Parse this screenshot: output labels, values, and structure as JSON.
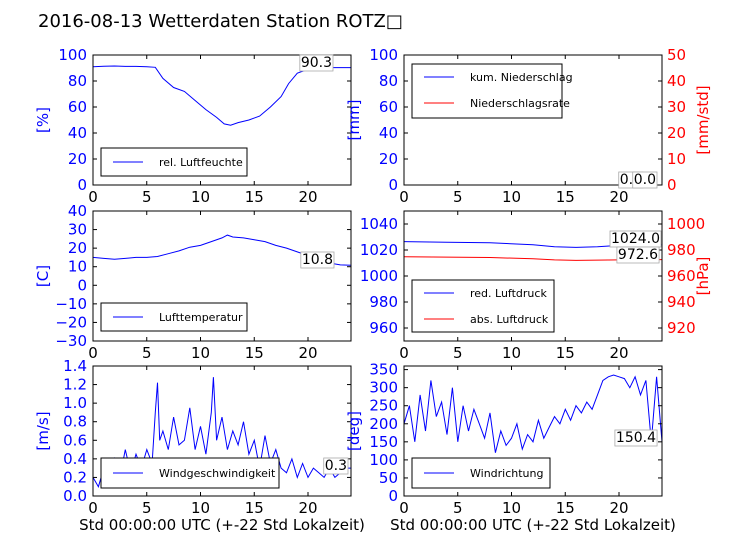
{
  "title": "2016-08-13 Wetterdaten Station ROTZ□",
  "colors": {
    "blue": "#0000ff",
    "red": "#ff0000",
    "axis": "#000000"
  },
  "chart_data": [
    {
      "id": "humidity",
      "type": "line",
      "xlim": [
        0,
        24
      ],
      "ylim": [
        0,
        100
      ],
      "xticks": [
        "0",
        "5",
        "10",
        "15",
        "20"
      ],
      "xtick_values": [
        0,
        5,
        10,
        15,
        20
      ],
      "yticks": [
        "0",
        "20",
        "40",
        "60",
        "80",
        "100"
      ],
      "ytick_values": [
        0,
        20,
        40,
        60,
        80,
        100
      ],
      "ylabel": "[%]",
      "xlabel": "",
      "annotation": "90.3",
      "legend": [
        "rel. Luftfeuchte"
      ],
      "series": [
        {
          "name": "rel. Luftfeuchte",
          "color": "#0000ff",
          "x": [
            0,
            1,
            2,
            3,
            4,
            5,
            5.8,
            6.5,
            7.5,
            8.5,
            9.5,
            10.5,
            11.5,
            12.2,
            12.8,
            13.5,
            14.5,
            15.5,
            16.5,
            17.5,
            18.2,
            19,
            20,
            21,
            22,
            23,
            24
          ],
          "y": [
            91,
            91.3,
            91.5,
            91.2,
            91.2,
            91,
            90.5,
            82,
            75,
            72,
            65,
            58,
            52,
            47,
            46,
            48,
            50,
            53,
            60,
            68,
            78,
            86,
            89,
            90,
            90.3,
            90.3,
            90.3
          ]
        }
      ]
    },
    {
      "id": "precipitation",
      "type": "line",
      "xlim": [
        0,
        24
      ],
      "ylim": [
        0,
        100
      ],
      "ylim_right": [
        0,
        50
      ],
      "xticks": [
        "0",
        "5",
        "10",
        "15",
        "20"
      ],
      "xtick_values": [
        0,
        5,
        10,
        15,
        20
      ],
      "yticks": [
        "0",
        "20",
        "40",
        "60",
        "80",
        "100"
      ],
      "ytick_values": [
        0,
        20,
        40,
        60,
        80,
        100
      ],
      "yticks_right": [
        "0",
        "10",
        "20",
        "30",
        "40",
        "50"
      ],
      "ytick_values_right": [
        0,
        10,
        20,
        30,
        40,
        50
      ],
      "ylabel": "[mm]",
      "ylabel_right": "[mm/std]",
      "xlabel": "",
      "annotation": "0.0",
      "annotation2": "0.0",
      "legend": [
        "kum. Niederschlag",
        "Niederschlagsrate"
      ],
      "series": [
        {
          "name": "kum. Niederschlag",
          "color": "#0000ff",
          "x": [
            0,
            24
          ],
          "y": [
            0,
            0
          ]
        },
        {
          "name": "Niederschlagsrate",
          "color": "#ff0000",
          "axis": "right",
          "x": [
            0,
            24
          ],
          "y": [
            0,
            0
          ]
        }
      ]
    },
    {
      "id": "temperature",
      "type": "line",
      "xlim": [
        0,
        24
      ],
      "ylim": [
        -30,
        40
      ],
      "xticks": [
        "0",
        "5",
        "10",
        "15",
        "20"
      ],
      "xtick_values": [
        0,
        5,
        10,
        15,
        20
      ],
      "yticks": [
        "−30",
        "−20",
        "−10",
        "0",
        "10",
        "20",
        "30",
        "40"
      ],
      "ytick_values": [
        -30,
        -20,
        -10,
        0,
        10,
        20,
        30,
        40
      ],
      "ylabel": "[C]",
      "xlabel": "",
      "annotation": "10.8",
      "legend": [
        "Lufttemperatur"
      ],
      "series": [
        {
          "name": "Lufttemperatur",
          "color": "#0000ff",
          "x": [
            0,
            1,
            2,
            3,
            4,
            5,
            6,
            7,
            8,
            9,
            10,
            11,
            12,
            12.5,
            13,
            14,
            15,
            16,
            17,
            18,
            19,
            20,
            21,
            22,
            23,
            24
          ],
          "y": [
            15,
            14.5,
            14,
            14.5,
            15,
            15,
            15.5,
            17,
            18.5,
            20.5,
            21.5,
            23.5,
            25.5,
            27,
            26,
            25.5,
            24.5,
            23.5,
            21.5,
            20,
            18,
            16,
            14,
            12,
            11,
            10.8
          ]
        }
      ]
    },
    {
      "id": "pressure",
      "type": "line",
      "xlim": [
        0,
        24
      ],
      "ylim": [
        950,
        1050
      ],
      "ylim_right": [
        910,
        1010
      ],
      "xticks": [
        "0",
        "5",
        "10",
        "15",
        "20"
      ],
      "xtick_values": [
        0,
        5,
        10,
        15,
        20
      ],
      "yticks": [
        "960",
        "980",
        "1000",
        "1020",
        "1040"
      ],
      "ytick_values": [
        960,
        980,
        1000,
        1020,
        1040
      ],
      "yticks_right": [
        "920",
        "940",
        "960",
        "980",
        "1000"
      ],
      "ytick_values_right": [
        920,
        940,
        960,
        980,
        1000
      ],
      "ylabel": "",
      "ylabel_right": "[hPa]",
      "xlabel": "",
      "annotation": "1024.0",
      "annotation2": "972.6",
      "legend": [
        "red. Luftdruck",
        "abs. Luftdruck"
      ],
      "series": [
        {
          "name": "red. Luftdruck",
          "color": "#0000ff",
          "x": [
            0,
            4,
            8,
            12,
            14,
            16,
            18,
            20,
            22,
            24
          ],
          "y": [
            1026.5,
            1026,
            1025.5,
            1024,
            1022.5,
            1022,
            1022.5,
            1023.5,
            1024,
            1024
          ]
        },
        {
          "name": "abs. Luftdruck",
          "color": "#ff0000",
          "axis": "right",
          "x": [
            0,
            4,
            8,
            12,
            14,
            16,
            18,
            20,
            22,
            24
          ],
          "y": [
            974.8,
            974.5,
            974.2,
            973.2,
            972.4,
            972,
            972.2,
            972.4,
            972.6,
            972.6
          ]
        }
      ]
    },
    {
      "id": "windspeed",
      "type": "line",
      "xlim": [
        0,
        24
      ],
      "ylim": [
        0,
        1.4
      ],
      "xticks": [
        "0",
        "5",
        "10",
        "15",
        "20"
      ],
      "xtick_values": [
        0,
        5,
        10,
        15,
        20
      ],
      "yticks": [
        "0.0",
        "0.2",
        "0.4",
        "0.6",
        "0.8",
        "1.0",
        "1.2",
        "1.4"
      ],
      "ytick_values": [
        0,
        0.2,
        0.4,
        0.6,
        0.8,
        1.0,
        1.2,
        1.4
      ],
      "ylabel": "[m/s]",
      "xlabel": "Std 00:00:00 UTC (+-22 Std Lokalzeit)",
      "annotation": "0.3",
      "legend": [
        "Windgeschwindigkeit"
      ],
      "series": [
        {
          "name": "Windgeschwindigkeit",
          "color": "#0000ff",
          "x": [
            0,
            0.5,
            1,
            1.5,
            2,
            2.5,
            3,
            3.5,
            4,
            4.5,
            5,
            5.5,
            5.8,
            6,
            6.2,
            6.5,
            7,
            7.5,
            8,
            8.5,
            9,
            9.5,
            10,
            10.5,
            11,
            11.2,
            11.5,
            12,
            12.5,
            13,
            13.5,
            14,
            14.5,
            15,
            15.5,
            16,
            16.5,
            17,
            17.5,
            18,
            18.5,
            19,
            19.5,
            20,
            20.5,
            21,
            21.5,
            22,
            22.5,
            23,
            23.5,
            24
          ],
          "y": [
            0.2,
            0.1,
            0.3,
            0.15,
            0.4,
            0.2,
            0.5,
            0.25,
            0.45,
            0.3,
            0.5,
            0.35,
            0.9,
            1.22,
            0.6,
            0.7,
            0.5,
            0.85,
            0.55,
            0.6,
            0.95,
            0.5,
            0.75,
            0.45,
            0.9,
            1.28,
            0.6,
            0.85,
            0.5,
            0.7,
            0.55,
            0.8,
            0.45,
            0.6,
            0.3,
            0.65,
            0.35,
            0.5,
            0.3,
            0.25,
            0.4,
            0.2,
            0.35,
            0.2,
            0.3,
            0.25,
            0.2,
            0.3,
            0.2,
            0.25,
            0.3,
            0.3
          ]
        }
      ]
    },
    {
      "id": "winddirection",
      "type": "line",
      "xlim": [
        0,
        24
      ],
      "ylim": [
        0,
        360
      ],
      "xticks": [
        "0",
        "5",
        "10",
        "15",
        "20"
      ],
      "xtick_values": [
        0,
        5,
        10,
        15,
        20
      ],
      "yticks": [
        "0",
        "50",
        "100",
        "150",
        "200",
        "250",
        "300",
        "350"
      ],
      "ytick_values": [
        0,
        50,
        100,
        150,
        200,
        250,
        300,
        350
      ],
      "ylabel": "[deg]",
      "xlabel": "Std 00:00:00 UTC (+-22 Std Lokalzeit)",
      "annotation": "150.4",
      "legend": [
        "Windrichtung"
      ],
      "series": [
        {
          "name": "Windrichtung",
          "color": "#0000ff",
          "x": [
            0,
            0.5,
            1,
            1.5,
            2,
            2.5,
            3,
            3.5,
            4,
            4.5,
            5,
            5.5,
            6,
            6.5,
            7,
            7.5,
            8,
            8.5,
            9,
            9.5,
            10,
            10.5,
            11,
            11.5,
            12,
            12.5,
            13,
            13.5,
            14,
            14.5,
            15,
            15.5,
            16,
            16.5,
            17,
            17.5,
            18,
            18.5,
            19,
            19.5,
            20,
            20.5,
            21,
            21.5,
            22,
            22.5,
            23,
            23.5,
            24
          ],
          "y": [
            200,
            250,
            150,
            280,
            180,
            320,
            220,
            260,
            170,
            300,
            150,
            250,
            180,
            240,
            200,
            160,
            230,
            120,
            180,
            140,
            160,
            200,
            130,
            170,
            150,
            210,
            160,
            190,
            220,
            200,
            240,
            210,
            250,
            230,
            260,
            240,
            280,
            320,
            330,
            335,
            330,
            325,
            300,
            330,
            280,
            320,
            150,
            330,
            150
          ]
        }
      ]
    }
  ]
}
